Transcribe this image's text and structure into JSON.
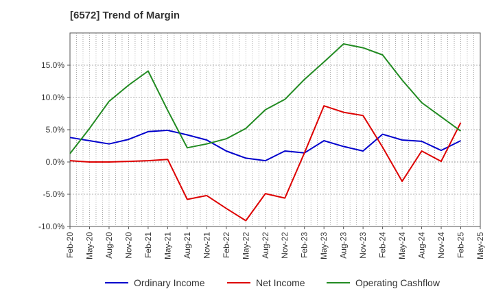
{
  "title": "[6572]  Trend of Margin",
  "chart_data": {
    "type": "line",
    "x": [
      "Feb-20",
      "May-20",
      "Aug-20",
      "Nov-20",
      "Feb-21",
      "May-21",
      "Aug-21",
      "Nov-21",
      "Feb-22",
      "May-22",
      "Aug-22",
      "Nov-22",
      "Feb-23",
      "May-23",
      "Aug-23",
      "Nov-23",
      "Feb-24",
      "May-24",
      "Aug-24",
      "Nov-24",
      "Feb-25",
      "May-25"
    ],
    "ylim": [
      -10,
      20
    ],
    "yticks": [
      -10,
      -5,
      0,
      5,
      10,
      15
    ],
    "ytick_labels": [
      "-10.0%",
      "-5.0%",
      "0.0%",
      "5.0%",
      "10.0%",
      "15.0%"
    ],
    "grid": true,
    "legend_position": "bottom",
    "series": [
      {
        "name": "Ordinary Income",
        "color": "#0000cc",
        "values": [
          3.8,
          3.3,
          2.8,
          3.5,
          4.7,
          4.9,
          4.2,
          3.4,
          1.7,
          0.6,
          0.2,
          1.7,
          1.4,
          3.3,
          2.4,
          1.7,
          4.3,
          3.4,
          3.2,
          1.8,
          3.3,
          null
        ]
      },
      {
        "name": "Net Income",
        "color": "#dd0000",
        "values": [
          0.2,
          0.0,
          0.0,
          0.1,
          0.2,
          0.4,
          -5.8,
          -5.2,
          -7.2,
          -9.1,
          -4.9,
          -5.6,
          1.4,
          8.7,
          7.7,
          7.2,
          2.3,
          -3.0,
          1.7,
          0.1,
          6.1,
          null
        ]
      },
      {
        "name": "Operating Cashflow",
        "color": "#228b22",
        "values": [
          1.3,
          5.2,
          9.4,
          11.9,
          14.1,
          8.0,
          2.2,
          2.8,
          3.6,
          5.2,
          8.1,
          9.7,
          12.8,
          15.5,
          18.3,
          17.7,
          16.6,
          12.7,
          9.2,
          7.0,
          4.8,
          null
        ]
      }
    ]
  }
}
